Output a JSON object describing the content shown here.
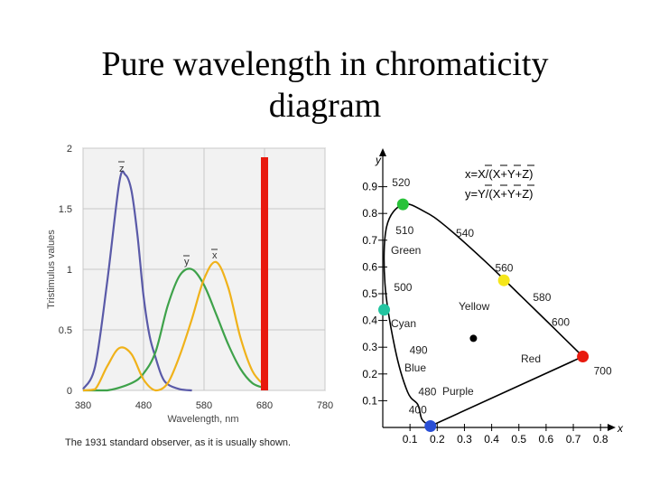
{
  "slide": {
    "title_line1": "Pure wavelength in chromaticity",
    "title_line2": "diagram"
  },
  "chart_data": [
    {
      "type": "line",
      "ylabel": "Tristimulus values",
      "xlabel": "Wavelength, nm",
      "caption": "The 1931 standard observer, as it is usually shown.",
      "xlim": [
        380,
        780
      ],
      "ylim": [
        0,
        2
      ],
      "x_ticks": [
        "380",
        "480",
        "580",
        "680",
        "780"
      ],
      "y_ticks": [
        "0",
        "0.5",
        "1",
        "1.5",
        "2"
      ],
      "series_labels": {
        "z": "z",
        "y": "y",
        "x": "x"
      },
      "colors": {
        "z": "#5a5aa8",
        "y": "#3ea24a",
        "x": "#f0b21a",
        "marker": "#e8190e",
        "grid": "#c8c8c8",
        "panel": "#f2f2f2"
      },
      "series": [
        {
          "name": "z",
          "x": [
            380,
            400,
            420,
            440,
            450,
            460,
            470,
            480,
            490,
            500,
            510,
            520,
            540,
            560
          ],
          "y": [
            0.01,
            0.2,
            0.9,
            1.72,
            1.78,
            1.65,
            1.28,
            0.78,
            0.45,
            0.27,
            0.12,
            0.05,
            0.01,
            0.0
          ]
        },
        {
          "name": "y",
          "x": [
            380,
            420,
            460,
            480,
            500,
            520,
            540,
            560,
            580,
            600,
            620,
            640,
            660,
            680
          ],
          "y": [
            0.0,
            0.0,
            0.06,
            0.14,
            0.32,
            0.7,
            0.95,
            1.0,
            0.87,
            0.63,
            0.38,
            0.18,
            0.06,
            0.02
          ]
        },
        {
          "name": "x",
          "x": [
            380,
            400,
            420,
            440,
            460,
            480,
            500,
            520,
            540,
            560,
            580,
            600,
            620,
            640,
            660,
            680
          ],
          "y": [
            0.0,
            0.01,
            0.2,
            0.35,
            0.3,
            0.09,
            0.0,
            0.06,
            0.29,
            0.59,
            0.92,
            1.06,
            0.85,
            0.44,
            0.16,
            0.04
          ]
        }
      ],
      "marker_wavelength": 680
    },
    {
      "type": "scatter",
      "xlabel": "x",
      "ylabel": "y",
      "formula_x": "x=X/(X+Y+Z)",
      "formula_y": "y=Y/(X+Y+Z)",
      "x_ticks": [
        "0.1",
        "0.2",
        "0.3",
        "0.4",
        "0.5",
        "0.6",
        "0.7",
        "0.8"
      ],
      "y_ticks": [
        "0.1",
        "0.2",
        "0.3",
        "0.4",
        "0.5",
        "0.6",
        "0.7",
        "0.8",
        "0.9"
      ],
      "locus": [
        [
          0.175,
          0.005
        ],
        [
          0.144,
          0.03
        ],
        [
          0.129,
          0.085
        ],
        [
          0.091,
          0.133
        ],
        [
          0.045,
          0.295
        ],
        [
          0.008,
          0.538
        ],
        [
          0.014,
          0.75
        ],
        [
          0.074,
          0.834
        ],
        [
          0.155,
          0.806
        ],
        [
          0.229,
          0.754
        ],
        [
          0.373,
          0.624
        ],
        [
          0.512,
          0.487
        ],
        [
          0.627,
          0.373
        ],
        [
          0.735,
          0.265
        ]
      ],
      "wavelength_labels": [
        {
          "text": "520",
          "x": 0.074,
          "y": 0.834
        },
        {
          "text": "540",
          "x": 0.229,
          "y": 0.754
        },
        {
          "text": "510",
          "x": 0.014,
          "y": 0.75
        },
        {
          "text": "560",
          "x": 0.373,
          "y": 0.624
        },
        {
          "text": "500",
          "x": 0.008,
          "y": 0.538
        },
        {
          "text": "580",
          "x": 0.512,
          "y": 0.487
        },
        {
          "text": "490",
          "x": 0.045,
          "y": 0.295
        },
        {
          "text": "600",
          "x": 0.627,
          "y": 0.373
        },
        {
          "text": "480",
          "x": 0.091,
          "y": 0.133
        },
        {
          "text": "700",
          "x": 0.735,
          "y": 0.265
        },
        {
          "text": "400",
          "x": 0.175,
          "y": 0.005
        }
      ],
      "region_labels": [
        "Green",
        "Yellow",
        "Cyan",
        "Blue",
        "Red",
        "Purple"
      ],
      "color_points": [
        {
          "name": "green",
          "x": 0.074,
          "y": 0.834,
          "color": "#29c23a"
        },
        {
          "name": "yellow",
          "x": 0.445,
          "y": 0.55,
          "color": "#f5e61a"
        },
        {
          "name": "cyan",
          "x": 0.005,
          "y": 0.44,
          "color": "#22c4a0"
        },
        {
          "name": "red",
          "x": 0.735,
          "y": 0.265,
          "color": "#e8190e"
        },
        {
          "name": "blue",
          "x": 0.175,
          "y": 0.005,
          "color": "#2a4fd6"
        },
        {
          "name": "white",
          "x": 0.333,
          "y": 0.333,
          "color": "#000000"
        }
      ]
    }
  ]
}
